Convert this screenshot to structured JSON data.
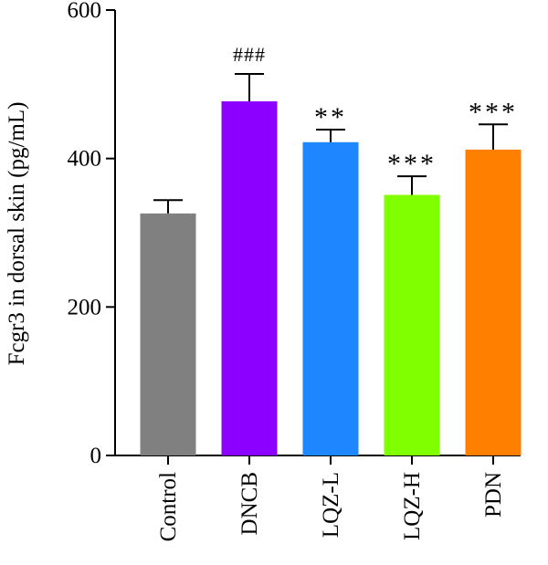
{
  "chart_data": {
    "type": "bar",
    "title": "",
    "xlabel": "",
    "ylabel": "Fcgr3 in dorsal skin (pg/mL)",
    "ylim": [
      0,
      600
    ],
    "yticks": [
      0,
      200,
      400,
      600
    ],
    "grid": false,
    "categories": [
      "Control",
      "DNCB",
      "LQZ-L",
      "LQZ-H",
      "PDN"
    ],
    "values": [
      326,
      477,
      422,
      351,
      412
    ],
    "errors": [
      18,
      37,
      17,
      25,
      34
    ],
    "significance": [
      "",
      "###",
      "**",
      "***",
      "***"
    ],
    "colors": [
      "#808080",
      "#8b00ff",
      "#1e86ff",
      "#80ff00",
      "#ff8000"
    ]
  }
}
